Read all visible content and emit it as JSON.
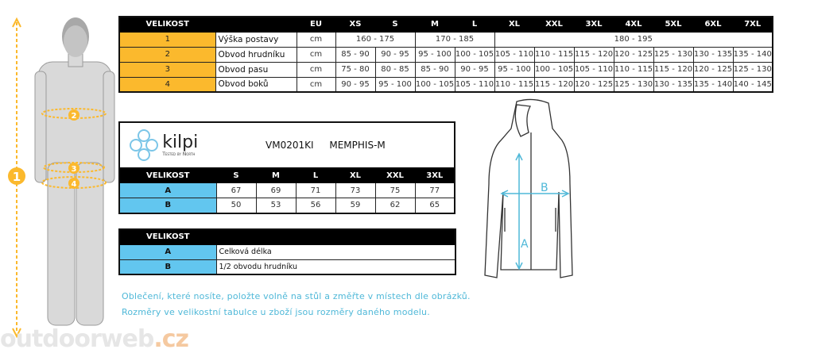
{
  "main_table": {
    "header": [
      "VELIKOST",
      "",
      "EU",
      "XS",
      "S",
      "M",
      "L",
      "XL",
      "XXL",
      "3XL",
      "4XL",
      "5XL",
      "6XL",
      "7XL"
    ],
    "height_row": {
      "num": "1",
      "label": "Výška postavy",
      "unit": "cm",
      "ranges": [
        "160 - 175",
        "170 - 185",
        "180 - 195"
      ]
    },
    "rows": [
      {
        "num": "2",
        "label": "Obvod hrudníku",
        "unit": "cm",
        "values": [
          "85 - 90",
          "90 - 95",
          "95 - 100",
          "100 - 105",
          "105 - 110",
          "110 - 115",
          "115 - 120",
          "120 - 125",
          "125 - 130",
          "130 - 135",
          "135 - 140"
        ]
      },
      {
        "num": "3",
        "label": "Obvod pasu",
        "unit": "cm",
        "values": [
          "75 - 80",
          "80 - 85",
          "85 - 90",
          "90 - 95",
          "95 - 100",
          "100 - 105",
          "105 - 110",
          "110 - 115",
          "115 - 120",
          "120 - 125",
          "125 - 130"
        ]
      },
      {
        "num": "4",
        "label": "Obvod boků",
        "unit": "cm",
        "values": [
          "90 - 95",
          "95 - 100",
          "100 - 105",
          "105 - 110",
          "110 - 115",
          "115 - 120",
          "120 - 125",
          "125 - 130",
          "130 - 135",
          "135 - 140",
          "140 - 145"
        ]
      }
    ]
  },
  "product": {
    "brand": "kilpi",
    "tagline": "Tested by North",
    "code": "VM0201KI",
    "name": "MEMPHIS-M",
    "header": [
      "VELIKOST",
      "S",
      "M",
      "L",
      "XL",
      "XXL",
      "3XL"
    ],
    "rows": [
      {
        "label": "A",
        "values": [
          "67",
          "69",
          "71",
          "73",
          "75",
          "77"
        ]
      },
      {
        "label": "B",
        "values": [
          "50",
          "53",
          "56",
          "59",
          "62",
          "65"
        ]
      }
    ]
  },
  "legend": {
    "header": "VELIKOST",
    "rows": [
      {
        "label": "A",
        "text": "Celková délka"
      },
      {
        "label": "B",
        "text": "1/2 obvodu hrudníku"
      }
    ]
  },
  "notes": [
    "Oblečení, které nosíte, položte volně na stůl a změřte v místech dle obrázků.",
    "Rozměry ve velikostní tabulce u zboží jsou rozměry daného modelu."
  ],
  "figure": {
    "markers": [
      "1",
      "2",
      "3",
      "4"
    ]
  },
  "jacket": {
    "markers": [
      "A",
      "B"
    ]
  },
  "watermark": {
    "main": "outdoorweb",
    "suffix": ".cz"
  },
  "colors": {
    "orange": "#fbb92d",
    "blue": "#62c6ef",
    "note_text": "#4fb8d8"
  }
}
